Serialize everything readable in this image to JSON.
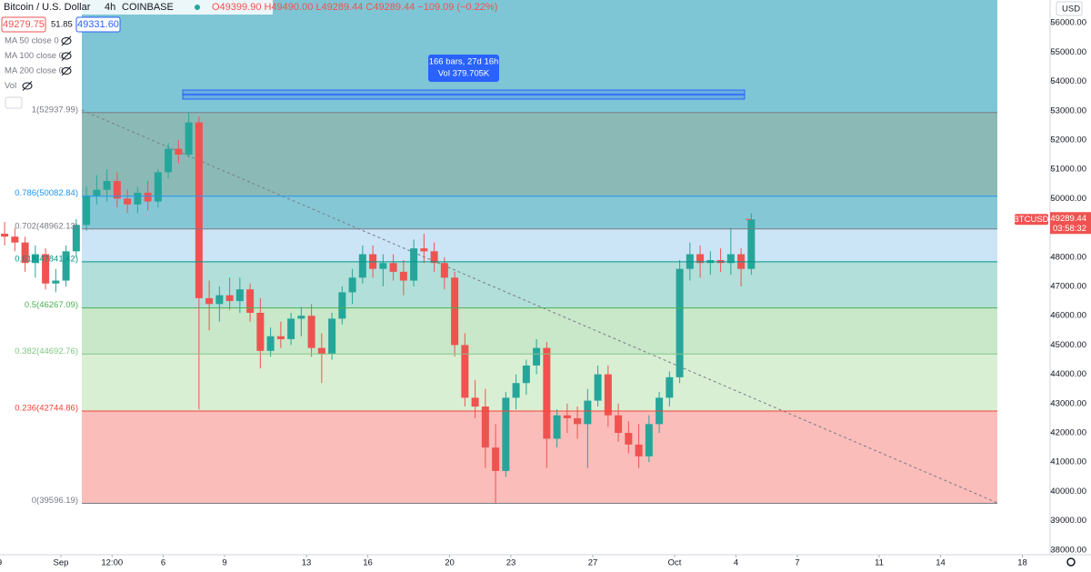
{
  "header": {
    "symbol": "Bitcoin / U.S. Dollar",
    "interval": "4h",
    "exchange": "COINBASE",
    "ohlc": "O49399.90 H49490.00 L49289.44 C49289.44 −109.09 (−0.22%)",
    "sell": "49279.75",
    "spread": "51.85",
    "buy": "49331.60"
  },
  "indicators": [
    "MA 50 close 0",
    "MA 100 close 0",
    "MA 200 close 0",
    "Vol"
  ],
  "currency": "USD",
  "measure": {
    "bars": "166 bars, 27d 16h",
    "volume": "Vol 379.705K"
  },
  "chart_data": {
    "type": "candlestick",
    "symbol_tag": "BTCUSD",
    "last_price": 49289.44,
    "countdown": "03:58:32",
    "up_color": "#26a69a",
    "down_color": "#ef5350",
    "extension_fill": "#7ec6d6",
    "x": [
      "Aug 29 00:00",
      "Aug 29 12:00",
      "Aug 30 00:00",
      "Aug 30 12:00",
      "Aug 31 00:00",
      "Aug 31 12:00",
      "Sep 1 00:00",
      "Sep 1 12:00",
      "Sep 2 00:00",
      "Sep 2 12:00",
      "Sep 3 00:00",
      "Sep 3 12:00",
      "Sep 4 00:00",
      "Sep 4 12:00",
      "Sep 5 00:00",
      "Sep 5 12:00",
      "Sep 6 00:00",
      "Sep 6 12:00",
      "Sep 7 00:00",
      "Sep 7 12:00",
      "Sep 8 00:00",
      "Sep 8 12:00",
      "Sep 9 00:00",
      "Sep 9 12:00",
      "Sep 10 00:00",
      "Sep 10 12:00",
      "Sep 11 00:00",
      "Sep 11 12:00",
      "Sep 12 00:00",
      "Sep 12 12:00",
      "Sep 13 00:00",
      "Sep 13 12:00",
      "Sep 14 00:00",
      "Sep 14 12:00",
      "Sep 15 00:00",
      "Sep 15 12:00",
      "Sep 16 00:00",
      "Sep 16 12:00",
      "Sep 17 00:00",
      "Sep 17 12:00",
      "Sep 18 00:00",
      "Sep 18 12:00",
      "Sep 19 00:00",
      "Sep 19 12:00",
      "Sep 20 00:00",
      "Sep 20 12:00",
      "Sep 21 00:00",
      "Sep 21 12:00",
      "Sep 22 00:00",
      "Sep 22 12:00",
      "Sep 23 00:00",
      "Sep 23 12:00",
      "Sep 24 00:00",
      "Sep 24 12:00",
      "Sep 25 00:00",
      "Sep 25 12:00",
      "Sep 26 00:00",
      "Sep 26 12:00",
      "Sep 27 00:00",
      "Sep 27 12:00",
      "Sep 28 00:00",
      "Sep 28 12:00",
      "Sep 29 00:00",
      "Sep 29 12:00",
      "Sep 30 00:00",
      "Sep 30 12:00",
      "Oct 1 00:00",
      "Oct 1 12:00",
      "Oct 2 00:00",
      "Oct 2 12:00",
      "Oct 3 00:00",
      "Oct 3 12:00",
      "Oct 4 00:00",
      "Oct 4 12:00"
    ],
    "open": [
      48800,
      48700,
      48500,
      47800,
      48100,
      47100,
      47200,
      48200,
      49100,
      50100,
      50300,
      50600,
      50000,
      49800,
      50200,
      49900,
      50900,
      51700,
      51500,
      52600,
      46600,
      46400,
      46700,
      46500,
      46900,
      46100,
      44800,
      45300,
      45200,
      45900,
      46000,
      44900,
      44700,
      45900,
      46800,
      47300,
      48100,
      47600,
      47800,
      47500,
      47200,
      48300,
      48200,
      47800,
      47300,
      45000,
      43200,
      42900,
      41500,
      40700,
      43200,
      43700,
      44300,
      44900,
      41800,
      42600,
      42500,
      42300,
      43100,
      44000,
      42600,
      42000,
      41600,
      41200,
      42300,
      43200,
      43900,
      47600,
      48100,
      47800,
      47900,
      47800,
      48100,
      47600
    ],
    "high": [
      49200,
      49000,
      48700,
      48400,
      48300,
      47600,
      48400,
      49300,
      50400,
      50800,
      51000,
      50900,
      50300,
      50400,
      50600,
      51000,
      51900,
      52000,
      52940,
      52800,
      47200,
      47000,
      47300,
      47300,
      47100,
      46600,
      45600,
      45800,
      46100,
      46300,
      46400,
      45400,
      46100,
      47000,
      47600,
      48400,
      48400,
      48100,
      48100,
      47900,
      48600,
      48800,
      48500,
      48000,
      47500,
      45400,
      43800,
      43500,
      42300,
      43400,
      44000,
      44500,
      45200,
      45100,
      42800,
      43000,
      42900,
      43500,
      44300,
      44300,
      43000,
      42400,
      42300,
      42600,
      43400,
      44100,
      47900,
      48500,
      48400,
      48200,
      48300,
      49000,
      48300,
      49500
    ],
    "low": [
      48400,
      48200,
      47500,
      47300,
      46900,
      46800,
      47000,
      48000,
      48900,
      49800,
      49900,
      49700,
      49500,
      49500,
      49600,
      49700,
      50700,
      51200,
      51400,
      42800,
      45500,
      45800,
      46200,
      46100,
      45800,
      44200,
      44600,
      44900,
      45000,
      45300,
      44600,
      43700,
      44500,
      45700,
      46400,
      47100,
      47300,
      47000,
      47200,
      46700,
      47000,
      47800,
      47500,
      46900,
      44600,
      42900,
      42500,
      40800,
      39600,
      40500,
      42800,
      43300,
      44000,
      40800,
      41500,
      42000,
      41800,
      40800,
      42900,
      42200,
      41700,
      41300,
      40800,
      41000,
      42000,
      42900,
      43700,
      47200,
      47300,
      47400,
      47500,
      47400,
      47000,
      47400
    ],
    "close": [
      48700,
      48500,
      47800,
      48100,
      47100,
      47200,
      48200,
      49100,
      50100,
      50300,
      50600,
      50000,
      49800,
      50200,
      49900,
      50900,
      51700,
      51500,
      52600,
      46600,
      46400,
      46700,
      46500,
      46900,
      46100,
      44800,
      45300,
      45200,
      45900,
      46000,
      44900,
      44700,
      45900,
      46800,
      47300,
      48100,
      47600,
      47800,
      47500,
      47200,
      48300,
      48200,
      47800,
      47300,
      45000,
      43200,
      42900,
      41500,
      40700,
      43200,
      43700,
      44300,
      44900,
      41800,
      42600,
      42500,
      42300,
      43100,
      44000,
      42600,
      42000,
      41600,
      41200,
      42300,
      43200,
      43900,
      47600,
      48100,
      47800,
      47900,
      47800,
      48100,
      47600,
      49289.44
    ],
    "ylim": [
      37840,
      56780
    ],
    "yticks": [
      {
        "value": 38000,
        "label": "38000.00"
      },
      {
        "value": 39000,
        "label": "39000.00"
      },
      {
        "value": 40000,
        "label": "40000.00"
      },
      {
        "value": 41000,
        "label": "41000.00"
      },
      {
        "value": 42000,
        "label": "42000.00"
      },
      {
        "value": 43000,
        "label": "43000.00"
      },
      {
        "value": 44000,
        "label": "44000.00"
      },
      {
        "value": 45000,
        "label": "45000.00"
      },
      {
        "value": 46000,
        "label": "46000.00"
      },
      {
        "value": 47000,
        "label": "47000.00"
      },
      {
        "value": 48000,
        "label": "48000.00"
      },
      {
        "value": 50000,
        "label": "50000.00"
      },
      {
        "value": 51000,
        "label": "51000.00"
      },
      {
        "value": 52000,
        "label": "52000.00"
      },
      {
        "value": 53000,
        "label": "53000.00"
      },
      {
        "value": 54000,
        "label": "54000.00"
      },
      {
        "value": 55000,
        "label": "55000.00"
      },
      {
        "value": 56000,
        "label": "56000.00"
      }
    ],
    "xticks": [
      {
        "value": "Aug 29 00:00",
        "label": "9"
      },
      {
        "value": "Sep 1 00:00",
        "label": "Sep"
      },
      {
        "value": "Sep 3 12:00",
        "label": "12:00"
      },
      {
        "value": "Sep 6 00:00",
        "label": "6"
      },
      {
        "value": "Sep 9 00:00",
        "label": "9"
      },
      {
        "value": "Sep 13 00:00",
        "label": "13"
      },
      {
        "value": "Sep 16 00:00",
        "label": "16"
      },
      {
        "value": "Sep 20 00:00",
        "label": "20"
      },
      {
        "value": "Sep 23 00:00",
        "label": "23"
      },
      {
        "value": "Sep 27 00:00",
        "label": "27"
      },
      {
        "value": "Oct 1 00:00",
        "label": "Oct"
      },
      {
        "value": "Oct 4 00:00",
        "label": "4"
      },
      {
        "value": "Oct 7 00:00",
        "label": "7"
      },
      {
        "value": "Oct 11 00:00",
        "label": "11"
      },
      {
        "value": "Oct 14 00:00",
        "label": "14"
      },
      {
        "value": "Oct 18 00:00",
        "label": "18"
      }
    ],
    "fib_levels": [
      {
        "label": "1(52937.99)",
        "value": 52937.99,
        "color": "#787b86",
        "fill": "#8bbab6"
      },
      {
        "label": "0.786(50082.84)",
        "value": 50082.84,
        "color": "#2196f3",
        "fill": "#86c7d6"
      },
      {
        "label": "0.702(48962.13)",
        "value": 48962.13,
        "color": "#787b86",
        "fill": "#cbe4f6"
      },
      {
        "label": "0.618(47841.42)",
        "value": 47841.42,
        "color": "#009688",
        "fill": "#b2dfd9"
      },
      {
        "label": "0.5(46267.09)",
        "value": 46267.09,
        "color": "#4caf50",
        "fill": "#c9e7c9"
      },
      {
        "label": "0.382(44692.76)",
        "value": 44692.76,
        "color": "#81c784",
        "fill": "#d9efd4"
      },
      {
        "label": "0.236(42744.86)",
        "value": 42744.86,
        "color": "#f44336",
        "fill": "#fabdba"
      },
      {
        "label": "0(39596.19)",
        "value": 39596.19,
        "color": "#787b86",
        "fill": "none"
      }
    ]
  }
}
